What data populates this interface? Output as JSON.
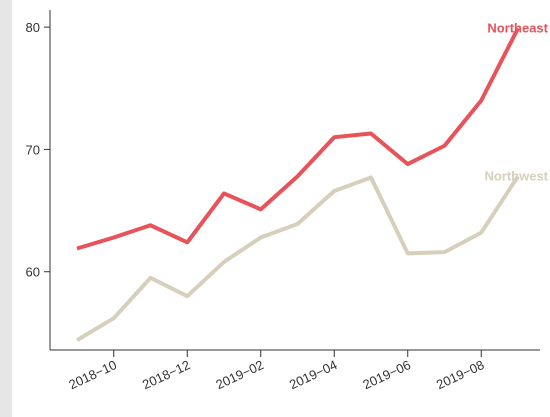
{
  "chart_data": {
    "type": "line",
    "x": [
      "2018-09",
      "2018-10",
      "2018-11",
      "2018-12",
      "2019-01",
      "2019-02",
      "2019-03",
      "2019-04",
      "2019-05",
      "2019-06",
      "2019-07",
      "2019-08",
      "2019-09"
    ],
    "series": [
      {
        "name": "Northeast",
        "color": "#e8525a",
        "values": [
          61.9,
          62.8,
          63.8,
          62.4,
          66.4,
          65.1,
          67.8,
          71.0,
          71.3,
          68.8,
          70.3,
          74.0,
          79.9
        ]
      },
      {
        "name": "Northwest",
        "color": "#d6cfbb",
        "values": [
          54.4,
          56.2,
          59.5,
          58.0,
          60.8,
          62.8,
          63.9,
          66.6,
          67.7,
          61.5,
          61.6,
          63.2,
          67.8
        ]
      }
    ],
    "ylim": [
      53.6,
      81.4
    ],
    "yticks": [
      60,
      70,
      80
    ],
    "xticks": [
      {
        "value": "2018-10",
        "label": "2018−10"
      },
      {
        "value": "2018-12",
        "label": "2018−12"
      },
      {
        "value": "2019-02",
        "label": "2019−02"
      },
      {
        "value": "2019-04",
        "label": "2019−04"
      },
      {
        "value": "2019-06",
        "label": "2019−06"
      },
      {
        "value": "2019-08",
        "label": "2019−08"
      }
    ]
  }
}
